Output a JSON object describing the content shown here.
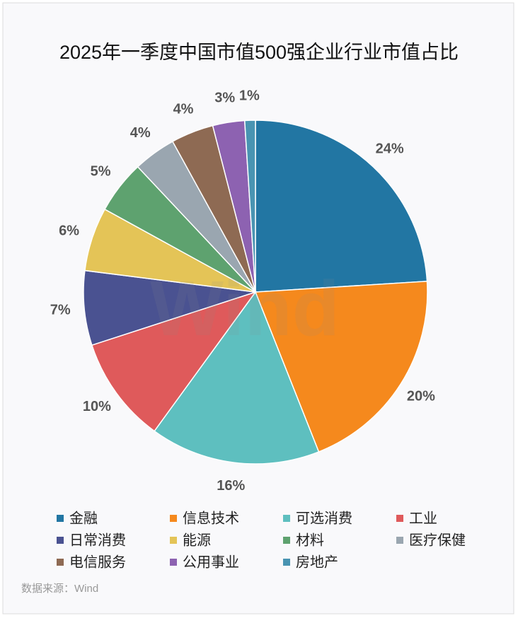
{
  "chart_data": {
    "type": "pie",
    "title": "2025年一季度中国市值500强企业行业市值占比",
    "categories": [
      "金融",
      "信息技术",
      "可选消费",
      "工业",
      "日常消费",
      "能源",
      "材料",
      "医疗保健",
      "电信服务",
      "公用事业",
      "房地产"
    ],
    "values": [
      24,
      20,
      16,
      10,
      7,
      6,
      5,
      4,
      4,
      3,
      1
    ],
    "value_labels": [
      "24%",
      "20%",
      "16%",
      "10%",
      "7%",
      "6%",
      "5%",
      "4%",
      "4%",
      "3%",
      "1%"
    ],
    "colors": [
      "#2276a3",
      "#f5891d",
      "#5ebfbf",
      "#df5a5b",
      "#4a5291",
      "#e4c457",
      "#5ea26f",
      "#9aa6b0",
      "#8e6a53",
      "#8d62b1",
      "#4994b2"
    ],
    "watermark": "Wind",
    "source": "数据来源：Wind"
  }
}
